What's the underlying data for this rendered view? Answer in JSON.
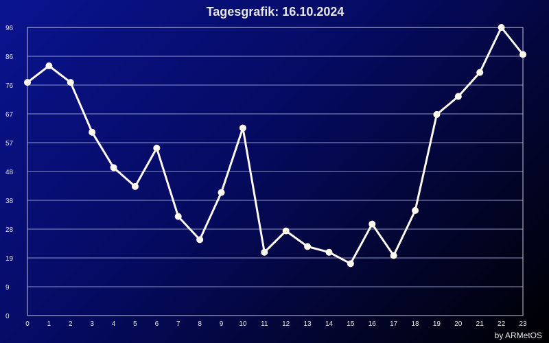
{
  "chart_data": {
    "type": "line",
    "title": "Tagesgrafik: 16.10.2024",
    "xlabel": "",
    "ylabel": "",
    "x": [
      0,
      1,
      2,
      3,
      4,
      5,
      6,
      7,
      8,
      9,
      10,
      11,
      12,
      13,
      14,
      15,
      16,
      17,
      18,
      19,
      20,
      21,
      22,
      23
    ],
    "y_ticks": [
      "0",
      "9",
      "19",
      "28",
      "38",
      "48",
      "57",
      "67",
      "76",
      "86",
      "96"
    ],
    "xlim": [
      0,
      23
    ],
    "ylim": [
      0,
      96
    ],
    "grid": true,
    "series": [
      {
        "values": [
          77.7,
          83.2,
          77.7,
          61.1,
          49.3,
          43.0,
          55.8,
          33.0,
          25.3,
          41.0,
          62.5,
          21.1,
          28.2,
          23.0,
          21.1,
          17.3,
          30.5,
          20.0,
          35.0,
          67.0,
          73.0,
          81.0,
          96.0,
          87.0
        ],
        "color": "#fffaf0"
      }
    ],
    "credit": "by ARMetOS"
  },
  "colors": {
    "background_start": "#0a1490",
    "background_end": "#000000",
    "line": "#fffaf0",
    "grid": "#8c96c8",
    "text": "#e6e6e6"
  }
}
